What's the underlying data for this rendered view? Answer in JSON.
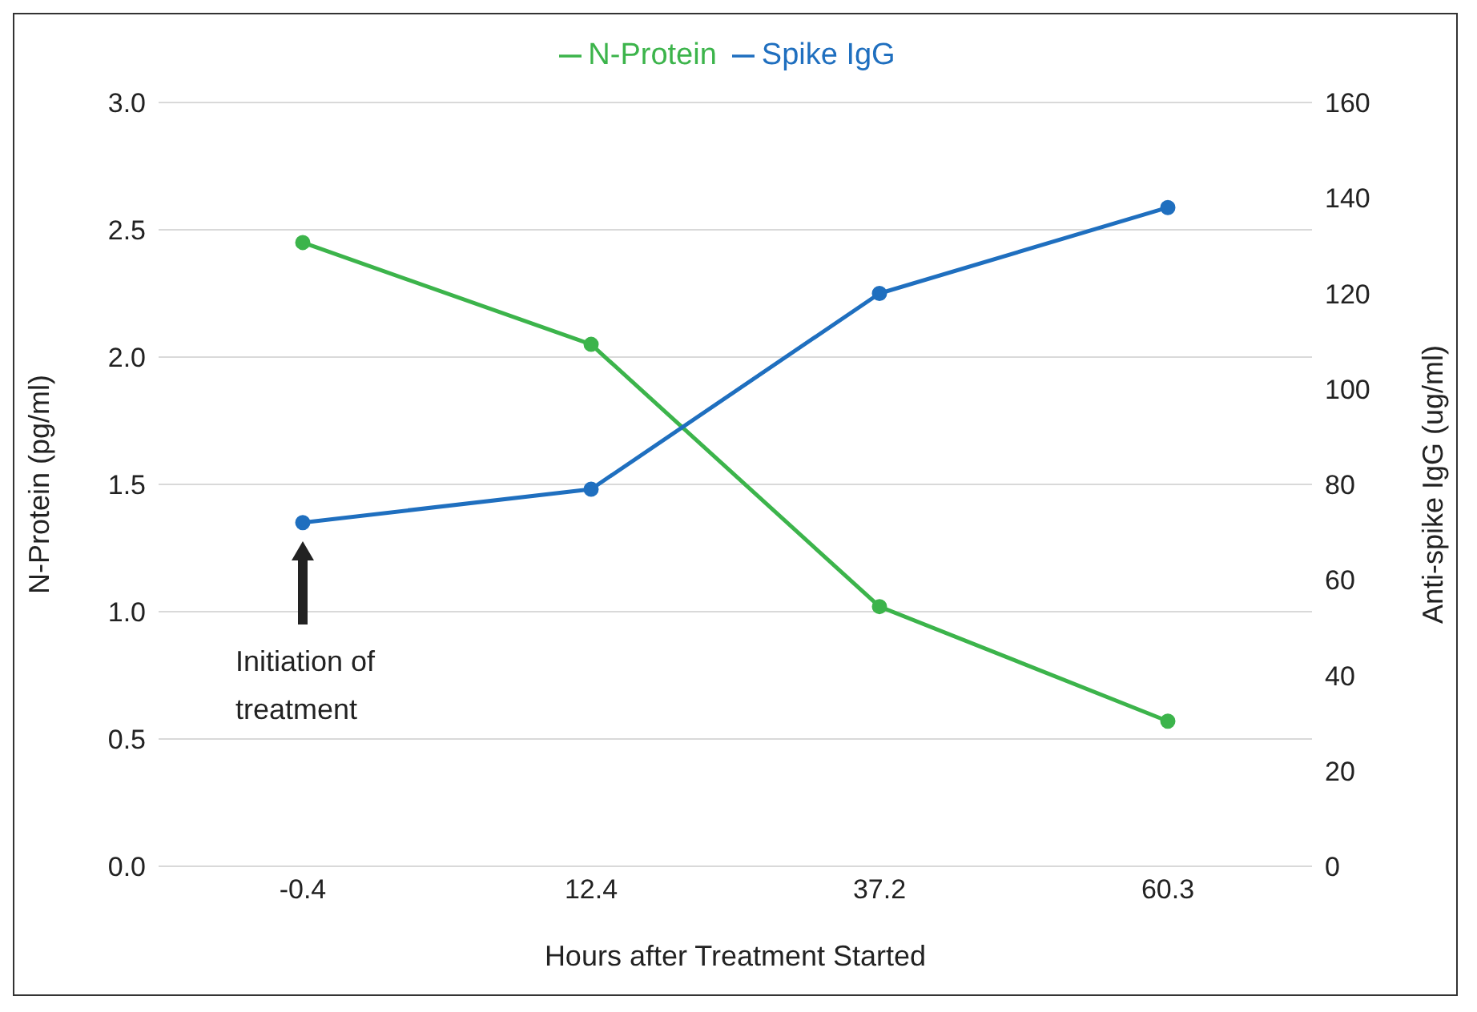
{
  "chart_data": {
    "type": "line",
    "categories": [
      "-0.4",
      "12.4",
      "37.2",
      "60.3"
    ],
    "xlabel": "Hours after Treatment Started",
    "ylabel": "N-Protein  (pg/ml)",
    "y2label": "Anti-spike IgG (ug/ml)",
    "series": [
      {
        "name": "N-Protein",
        "color": "#3cb44b",
        "values": [
          2.45,
          2.05,
          1.02,
          0.57
        ]
      },
      {
        "name": "Spike IgG",
        "color": "#1f6fbf",
        "values": [
          72,
          79,
          120,
          138
        ],
        "axis": "y2"
      }
    ],
    "ylim": [
      0,
      3
    ],
    "yticks": [
      {
        "value": 0,
        "label": "0.0"
      },
      {
        "value": 0.5,
        "label": "0.5"
      },
      {
        "value": 1,
        "label": "1.0"
      },
      {
        "value": 1.5,
        "label": "1.5"
      },
      {
        "value": 2,
        "label": "2.0"
      },
      {
        "value": 2.5,
        "label": "2.5"
      },
      {
        "value": 3,
        "label": "3.0"
      }
    ],
    "y2lim": [
      0,
      160
    ],
    "y2ticks": [
      0,
      20,
      40,
      60,
      80,
      100,
      120,
      140,
      160
    ],
    "grid": "y",
    "legend": "top",
    "marker": "circle",
    "line_style": "solid",
    "annotations": [
      "Initiation of treatment"
    ]
  }
}
